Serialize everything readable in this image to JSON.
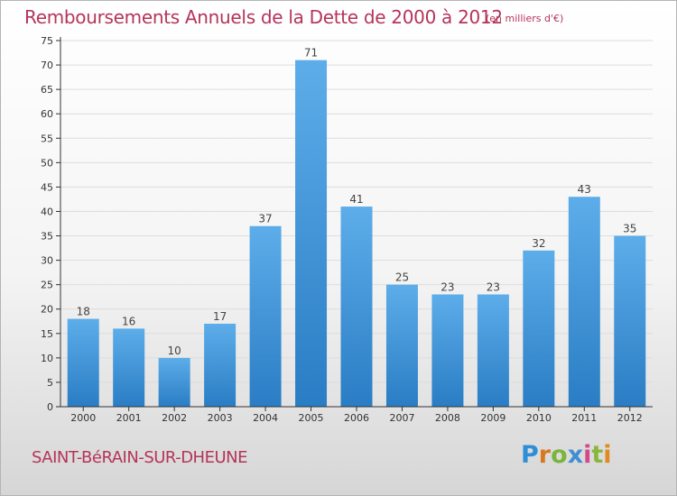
{
  "title": "Remboursements Annuels de la Dette de 2000 à 2012",
  "subtitle": "(en milliers d'€)",
  "town": "SAINT-BéRAIN-SUR-DHEUNE",
  "logo": {
    "letters": [
      "P",
      "r",
      "o",
      "x",
      "i",
      "t",
      "i"
    ],
    "colors": [
      "#2f8fd6",
      "#d9781f",
      "#7bb53d",
      "#3f8fd2",
      "#d24a8a",
      "#8ab63f",
      "#e08a22"
    ]
  },
  "colors": {
    "bar_light": "#5dadea",
    "bar_dark": "#2a7dc4",
    "text": "#b5345a",
    "axis": "#333333",
    "grid": "#dddddd"
  },
  "chart_data": {
    "type": "bar",
    "categories": [
      "2000",
      "2001",
      "2002",
      "2003",
      "2004",
      "2005",
      "2006",
      "2007",
      "2008",
      "2009",
      "2010",
      "2011",
      "2012"
    ],
    "values": [
      18,
      16,
      10,
      17,
      37,
      71,
      41,
      25,
      23,
      23,
      32,
      43,
      35
    ],
    "title": "Remboursements Annuels de la Dette de 2000 à 2012",
    "subtitle": "(en milliers d'€)",
    "ylim": [
      0,
      75
    ],
    "yticks": [
      0,
      5,
      10,
      15,
      20,
      25,
      30,
      35,
      40,
      45,
      50,
      55,
      60,
      65,
      70,
      75
    ],
    "grid": true,
    "data_labels": true
  }
}
